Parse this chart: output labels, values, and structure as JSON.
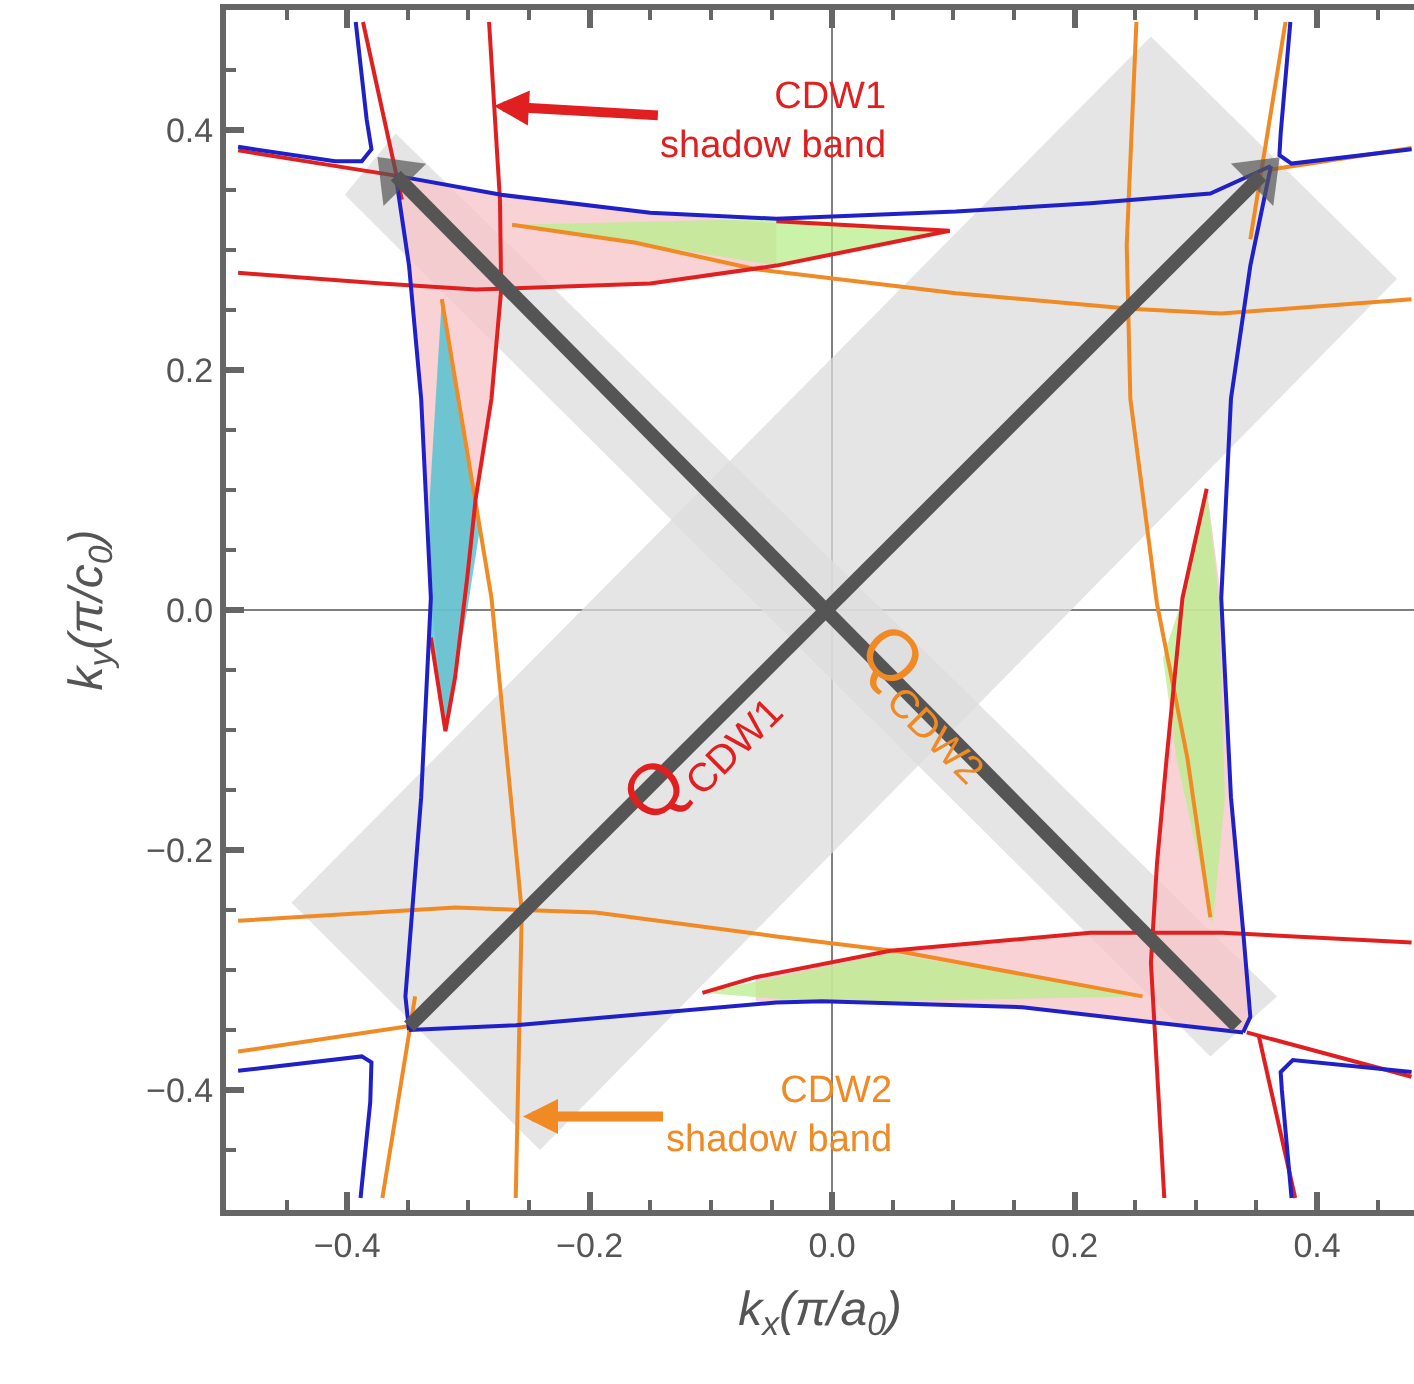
{
  "chart_data": {
    "type": "line",
    "xlabel": "k$_{x}$(π/a$_{0}$)",
    "ylabel": "k$_{y}$(π/c$_{0}$)",
    "xlim": [
      -0.5,
      0.48
    ],
    "ylim": [
      -0.5,
      0.5
    ],
    "xticks": [
      {
        "value": -0.45,
        "label": null
      },
      {
        "value": -0.4,
        "label": "−0.4"
      },
      {
        "value": -0.35,
        "label": null
      },
      {
        "value": -0.3,
        "label": null
      },
      {
        "value": -0.25,
        "label": null
      },
      {
        "value": -0.2,
        "label": "−0.2"
      },
      {
        "value": -0.15,
        "label": null
      },
      {
        "value": -0.1,
        "label": null
      },
      {
        "value": -0.05,
        "label": null
      },
      {
        "value": 0,
        "label": "0.0"
      },
      {
        "value": 0.05,
        "label": null
      },
      {
        "value": 0.1,
        "label": null
      },
      {
        "value": 0.15,
        "label": null
      },
      {
        "value": 0.2,
        "label": "0.2"
      },
      {
        "value": 0.25,
        "label": null
      },
      {
        "value": 0.3,
        "label": null
      },
      {
        "value": 0.35,
        "label": null
      },
      {
        "value": 0.4,
        "label": "0.4"
      },
      {
        "value": 0.45,
        "label": null
      }
    ],
    "yticks": [
      {
        "value": -0.45,
        "label": null
      },
      {
        "value": -0.4,
        "label": "−0.4"
      },
      {
        "value": -0.35,
        "label": null
      },
      {
        "value": -0.3,
        "label": null
      },
      {
        "value": -0.25,
        "label": null
      },
      {
        "value": -0.2,
        "label": "−0.2"
      },
      {
        "value": -0.15,
        "label": null
      },
      {
        "value": -0.1,
        "label": null
      },
      {
        "value": -0.05,
        "label": null
      },
      {
        "value": 0,
        "label": "0.0"
      },
      {
        "value": 0.05,
        "label": null
      },
      {
        "value": 0.1,
        "label": null
      },
      {
        "value": 0.15,
        "label": null
      },
      {
        "value": 0.2,
        "label": "0.2"
      },
      {
        "value": 0.25,
        "label": null
      },
      {
        "value": 0.3,
        "label": null
      },
      {
        "value": 0.35,
        "label": null
      },
      {
        "value": 0.4,
        "label": "0.4"
      },
      {
        "value": 0.45,
        "label": null
      }
    ],
    "series": [
      {
        "type": "area",
        "color": "#dcdcdc",
        "x": [
          -0.446,
          0.263,
          0.466,
          -0.241
        ],
        "values": [
          -0.244,
          0.478,
          0.276,
          -0.45
        ]
      },
      {
        "type": "area",
        "color": "#dcdcdc",
        "x": [
          -0.402,
          -0.36,
          0.367,
          0.312
        ],
        "values": [
          0.346,
          0.397,
          -0.322,
          -0.372
        ]
      },
      {
        "type": "area",
        "color": "#f5c3c6",
        "x": [
          -0.36,
          -0.273,
          -0.15,
          -0.046,
          -0.046,
          -0.15,
          -0.273,
          -0.281,
          -0.294,
          -0.319,
          -0.331,
          -0.339,
          -0.349
        ],
        "values": [
          0.362,
          0.346,
          0.331,
          0.322,
          0.287,
          0.272,
          0.267,
          0.176,
          0.093,
          -0.101,
          0.01,
          0.176,
          0.287
        ]
      },
      {
        "type": "area",
        "color": "#f5c3c6",
        "x": [
          0.339,
          0.157,
          -0.063,
          -0.063,
          0.048,
          0.213,
          0.263,
          0.268,
          0.289,
          0.309,
          0.321,
          0.329,
          0.339,
          0.345
        ],
        "values": [
          -0.352,
          -0.331,
          -0.326,
          -0.306,
          -0.284,
          -0.269,
          -0.272,
          -0.211,
          0.01,
          0.101,
          0.01,
          -0.156,
          -0.267,
          -0.339
        ]
      },
      {
        "type": "area",
        "color": "#b8ef8c",
        "x": [
          -0.264,
          -0.046,
          0.097,
          -0.046,
          -0.162
        ],
        "values": [
          0.321,
          0.326,
          0.316,
          0.287,
          0.306
        ]
      },
      {
        "type": "area",
        "color": "#b8ef8c",
        "x": [
          0.309,
          0.319,
          0.324,
          0.314,
          0.284,
          0.273,
          0.289
        ],
        "values": [
          0.101,
          0.01,
          -0.156,
          -0.261,
          -0.123,
          -0.04,
          0.01
        ]
      },
      {
        "type": "area",
        "color": "#b8ef8c",
        "x": [
          -0.107,
          0.048,
          0.256,
          -0.008
        ],
        "values": [
          -0.319,
          -0.286,
          -0.322,
          -0.327
        ]
      },
      {
        "type": "area",
        "color": "#40bfd0",
        "x": [
          -0.322,
          -0.291,
          -0.301,
          -0.319,
          -0.331,
          -0.332,
          -0.327
        ],
        "values": [
          0.259,
          0.065,
          0.0,
          -0.101,
          -0.023,
          0.093,
          0.176
        ]
      },
      {
        "type": "line",
        "color": "#f08a24",
        "x": [
          -0.264,
          -0.162,
          -0.063,
          0.102,
          0.246,
          0.321,
          0.478
        ],
        "values": [
          0.321,
          0.306,
          0.284,
          0.264,
          0.251,
          0.247,
          0.259
        ]
      },
      {
        "type": "line",
        "color": "#f08a24",
        "x": [
          -0.49,
          -0.311,
          -0.195,
          -0.046,
          0.058,
          0.256
        ],
        "values": [
          -0.259,
          -0.248,
          -0.252,
          -0.272,
          -0.285,
          -0.322
        ]
      },
      {
        "type": "line",
        "color": "#f08a24",
        "x": [
          -0.322,
          -0.281,
          -0.256,
          -0.261
        ],
        "values": [
          0.259,
          0.01,
          -0.251,
          -0.49
        ]
      },
      {
        "type": "line",
        "color": "#f08a24",
        "x": [
          0.251,
          0.243,
          0.246,
          0.268,
          0.293,
          0.312
        ],
        "values": [
          0.49,
          0.304,
          0.176,
          0.005,
          -0.123,
          -0.256
        ]
      },
      {
        "type": "line",
        "color": "#f08a24",
        "x": [
          0.362,
          0.478
        ],
        "values": [
          0.367,
          0.385
        ]
      },
      {
        "type": "line",
        "color": "#f08a24",
        "x": [
          0.374,
          0.345
        ],
        "values": [
          0.49,
          0.309
        ]
      },
      {
        "type": "line",
        "color": "#f08a24",
        "x": [
          -0.49,
          -0.344
        ],
        "values": [
          -0.368,
          -0.346
        ]
      },
      {
        "type": "line",
        "color": "#f08a24",
        "x": [
          -0.371,
          -0.344
        ],
        "values": [
          -0.49,
          -0.322
        ]
      },
      {
        "type": "line",
        "color": "#e02020",
        "x": [
          -0.49,
          -0.372,
          -0.294,
          -0.15,
          -0.046,
          0.097,
          -0.046
        ],
        "values": [
          0.281,
          0.272,
          0.267,
          0.272,
          0.287,
          0.316,
          0.324
        ]
      },
      {
        "type": "line",
        "color": "#e02020",
        "x": [
          -0.36,
          -0.49
        ],
        "values": [
          0.362,
          0.383
        ]
      },
      {
        "type": "line",
        "color": "#e02020",
        "x": [
          -0.283,
          -0.274,
          -0.273,
          -0.281,
          -0.294,
          -0.301,
          -0.311,
          -0.319,
          -0.331
        ],
        "values": [
          0.49,
          0.342,
          0.267,
          0.176,
          0.093,
          0.027,
          -0.056,
          -0.101,
          -0.023
        ]
      },
      {
        "type": "line",
        "color": "#e02020",
        "x": [
          -0.387,
          -0.355
        ],
        "values": [
          0.49,
          0.342
        ]
      },
      {
        "type": "line",
        "color": "#e02020",
        "x": [
          -0.107,
          -0.063,
          0.048,
          0.213,
          0.322,
          0.478
        ],
        "values": [
          -0.319,
          -0.306,
          -0.284,
          -0.269,
          -0.269,
          -0.277
        ]
      },
      {
        "type": "line",
        "color": "#e02020",
        "x": [
          0.309,
          0.298,
          0.289,
          0.276,
          0.268,
          0.263,
          0.274
        ],
        "values": [
          0.101,
          0.051,
          0.01,
          -0.123,
          -0.211,
          -0.294,
          -0.49
        ]
      },
      {
        "type": "line",
        "color": "#e02020",
        "x": [
          0.342,
          0.478
        ],
        "values": [
          -0.352,
          -0.389
        ]
      },
      {
        "type": "line",
        "color": "#e02020",
        "x": [
          0.352,
          0.382
        ],
        "values": [
          -0.355,
          -0.49
        ]
      },
      {
        "type": "line",
        "color": "#2020c8",
        "x": [
          -0.36,
          -0.273,
          -0.15,
          -0.046,
          0.102,
          0.213,
          0.312,
          0.362
        ],
        "values": [
          0.362,
          0.346,
          0.331,
          0.326,
          0.332,
          0.339,
          0.347,
          0.37
        ]
      },
      {
        "type": "line",
        "color": "#2020c8",
        "x": [
          0.362,
          0.345,
          0.329,
          0.321,
          0.329,
          0.339,
          0.345,
          0.339
        ],
        "values": [
          0.37,
          0.287,
          0.176,
          0.01,
          -0.156,
          -0.267,
          -0.339,
          -0.352
        ]
      },
      {
        "type": "line",
        "color": "#2020c8",
        "x": [
          0.339,
          0.268,
          0.157,
          -0.008,
          -0.046,
          -0.261,
          -0.349
        ],
        "values": [
          -0.352,
          -0.344,
          -0.331,
          -0.326,
          -0.327,
          -0.346,
          -0.35
        ]
      },
      {
        "type": "line",
        "color": "#2020c8",
        "x": [
          -0.349,
          -0.352,
          -0.339,
          -0.331,
          -0.339,
          -0.349,
          -0.36
        ],
        "values": [
          -0.35,
          -0.322,
          -0.156,
          0.01,
          0.176,
          0.287,
          0.362
        ]
      },
      {
        "type": "line",
        "color": "#2020c8",
        "x": [
          -0.393,
          -0.384,
          -0.38,
          -0.388,
          -0.41,
          -0.49
        ],
        "values": [
          0.49,
          0.409,
          0.384,
          0.374,
          0.374,
          0.386
        ]
      },
      {
        "type": "line",
        "color": "#2020c8",
        "x": [
          0.378,
          0.37,
          0.369,
          0.379,
          0.478
        ],
        "values": [
          0.49,
          0.397,
          0.379,
          0.372,
          0.384
        ]
      },
      {
        "type": "line",
        "color": "#2020c8",
        "x": [
          -0.49,
          -0.388,
          -0.38,
          -0.381,
          -0.389
        ],
        "values": [
          -0.384,
          -0.372,
          -0.377,
          -0.41,
          -0.49
        ]
      },
      {
        "type": "line",
        "color": "#2020c8",
        "x": [
          0.478,
          0.38,
          0.37,
          0.371,
          0.379
        ],
        "values": [
          -0.385,
          -0.375,
          -0.385,
          -0.4,
          -0.49
        ]
      },
      {
        "type": "line",
        "color": "#555555",
        "marker": "triangle",
        "x": [
          -0.349,
          0.354
        ],
        "values": [
          -0.347,
          0.362
        ]
      },
      {
        "type": "line",
        "color": "#555555",
        "marker": "triangle",
        "x": [
          0.334,
          -0.36
        ],
        "values": [
          -0.347,
          0.362
        ]
      }
    ],
    "annotations": [
      {
        "text": "CDW1\nshadow band",
        "x": -0.279,
        "y": 0.42
      },
      {
        "text": "CDW2\nshadow band",
        "x": -0.255,
        "y": -0.422
      },
      "Q$_{CDW1}$",
      "Q$_{CDW2}$"
    ]
  }
}
